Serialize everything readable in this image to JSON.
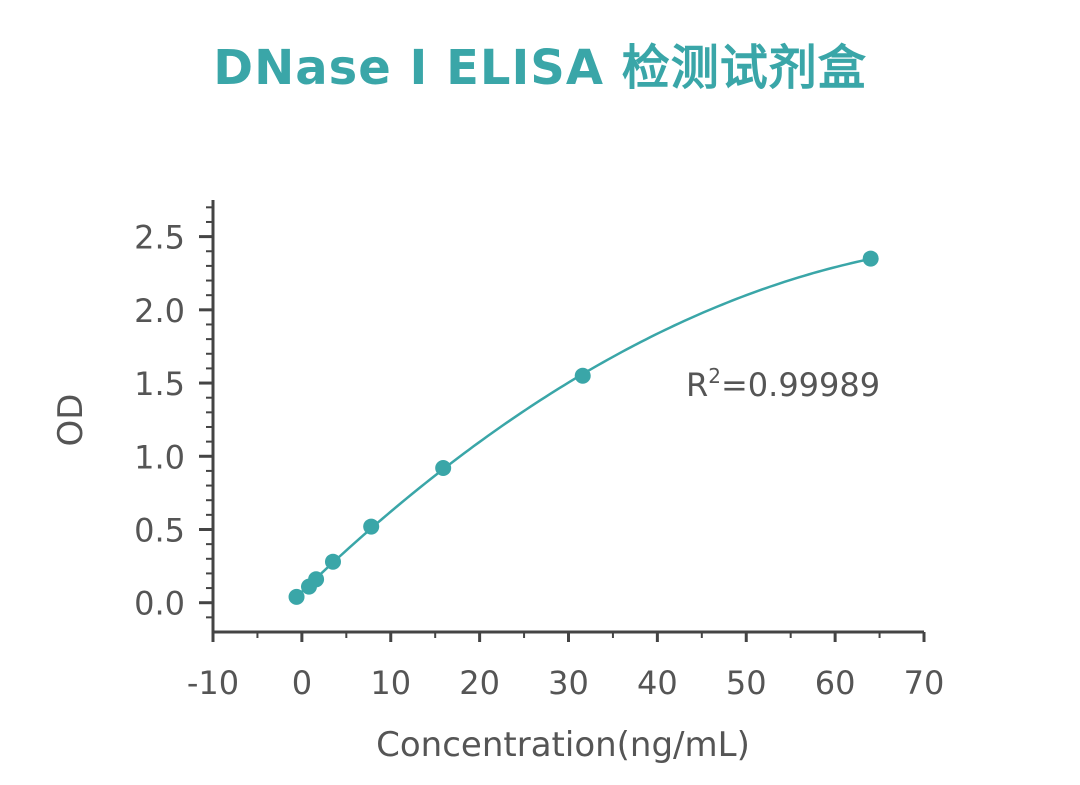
{
  "chart_data": {
    "type": "scatter",
    "title": "DNase I  ELISA  检测试剂盒",
    "xlabel": "Concentration(ng/mL)",
    "ylabel": "OD",
    "xlim": [
      -10,
      70
    ],
    "ylim": [
      -0.2,
      2.75
    ],
    "x_ticks": [
      -10,
      0,
      10,
      20,
      30,
      40,
      50,
      60,
      70
    ],
    "y_ticks": [
      0.0,
      0.5,
      1.0,
      1.5,
      2.0,
      2.5
    ],
    "x_tick_labels": [
      "-10",
      "0",
      "10",
      "20",
      "30",
      "40",
      "50",
      "60",
      "70"
    ],
    "y_tick_labels": [
      "0.0",
      "0.5",
      "1.0",
      "1.5",
      "2.0",
      "2.5"
    ],
    "series": [
      {
        "x": [
          -0.6,
          0.8,
          1.6,
          3.5,
          7.8,
          15.9,
          31.6,
          64.0
        ],
        "y": [
          0.04,
          0.11,
          0.16,
          0.28,
          0.52,
          0.92,
          1.55,
          2.35
        ],
        "fit": "smooth curve"
      }
    ],
    "annotations": [
      {
        "base": "R",
        "sup": "2",
        "rest": "=0.99989"
      }
    ],
    "grid": false,
    "colors": {
      "series": "#3aa6a8",
      "axis": "#444444",
      "text": "#555555",
      "title": "#3aa6a8"
    }
  }
}
